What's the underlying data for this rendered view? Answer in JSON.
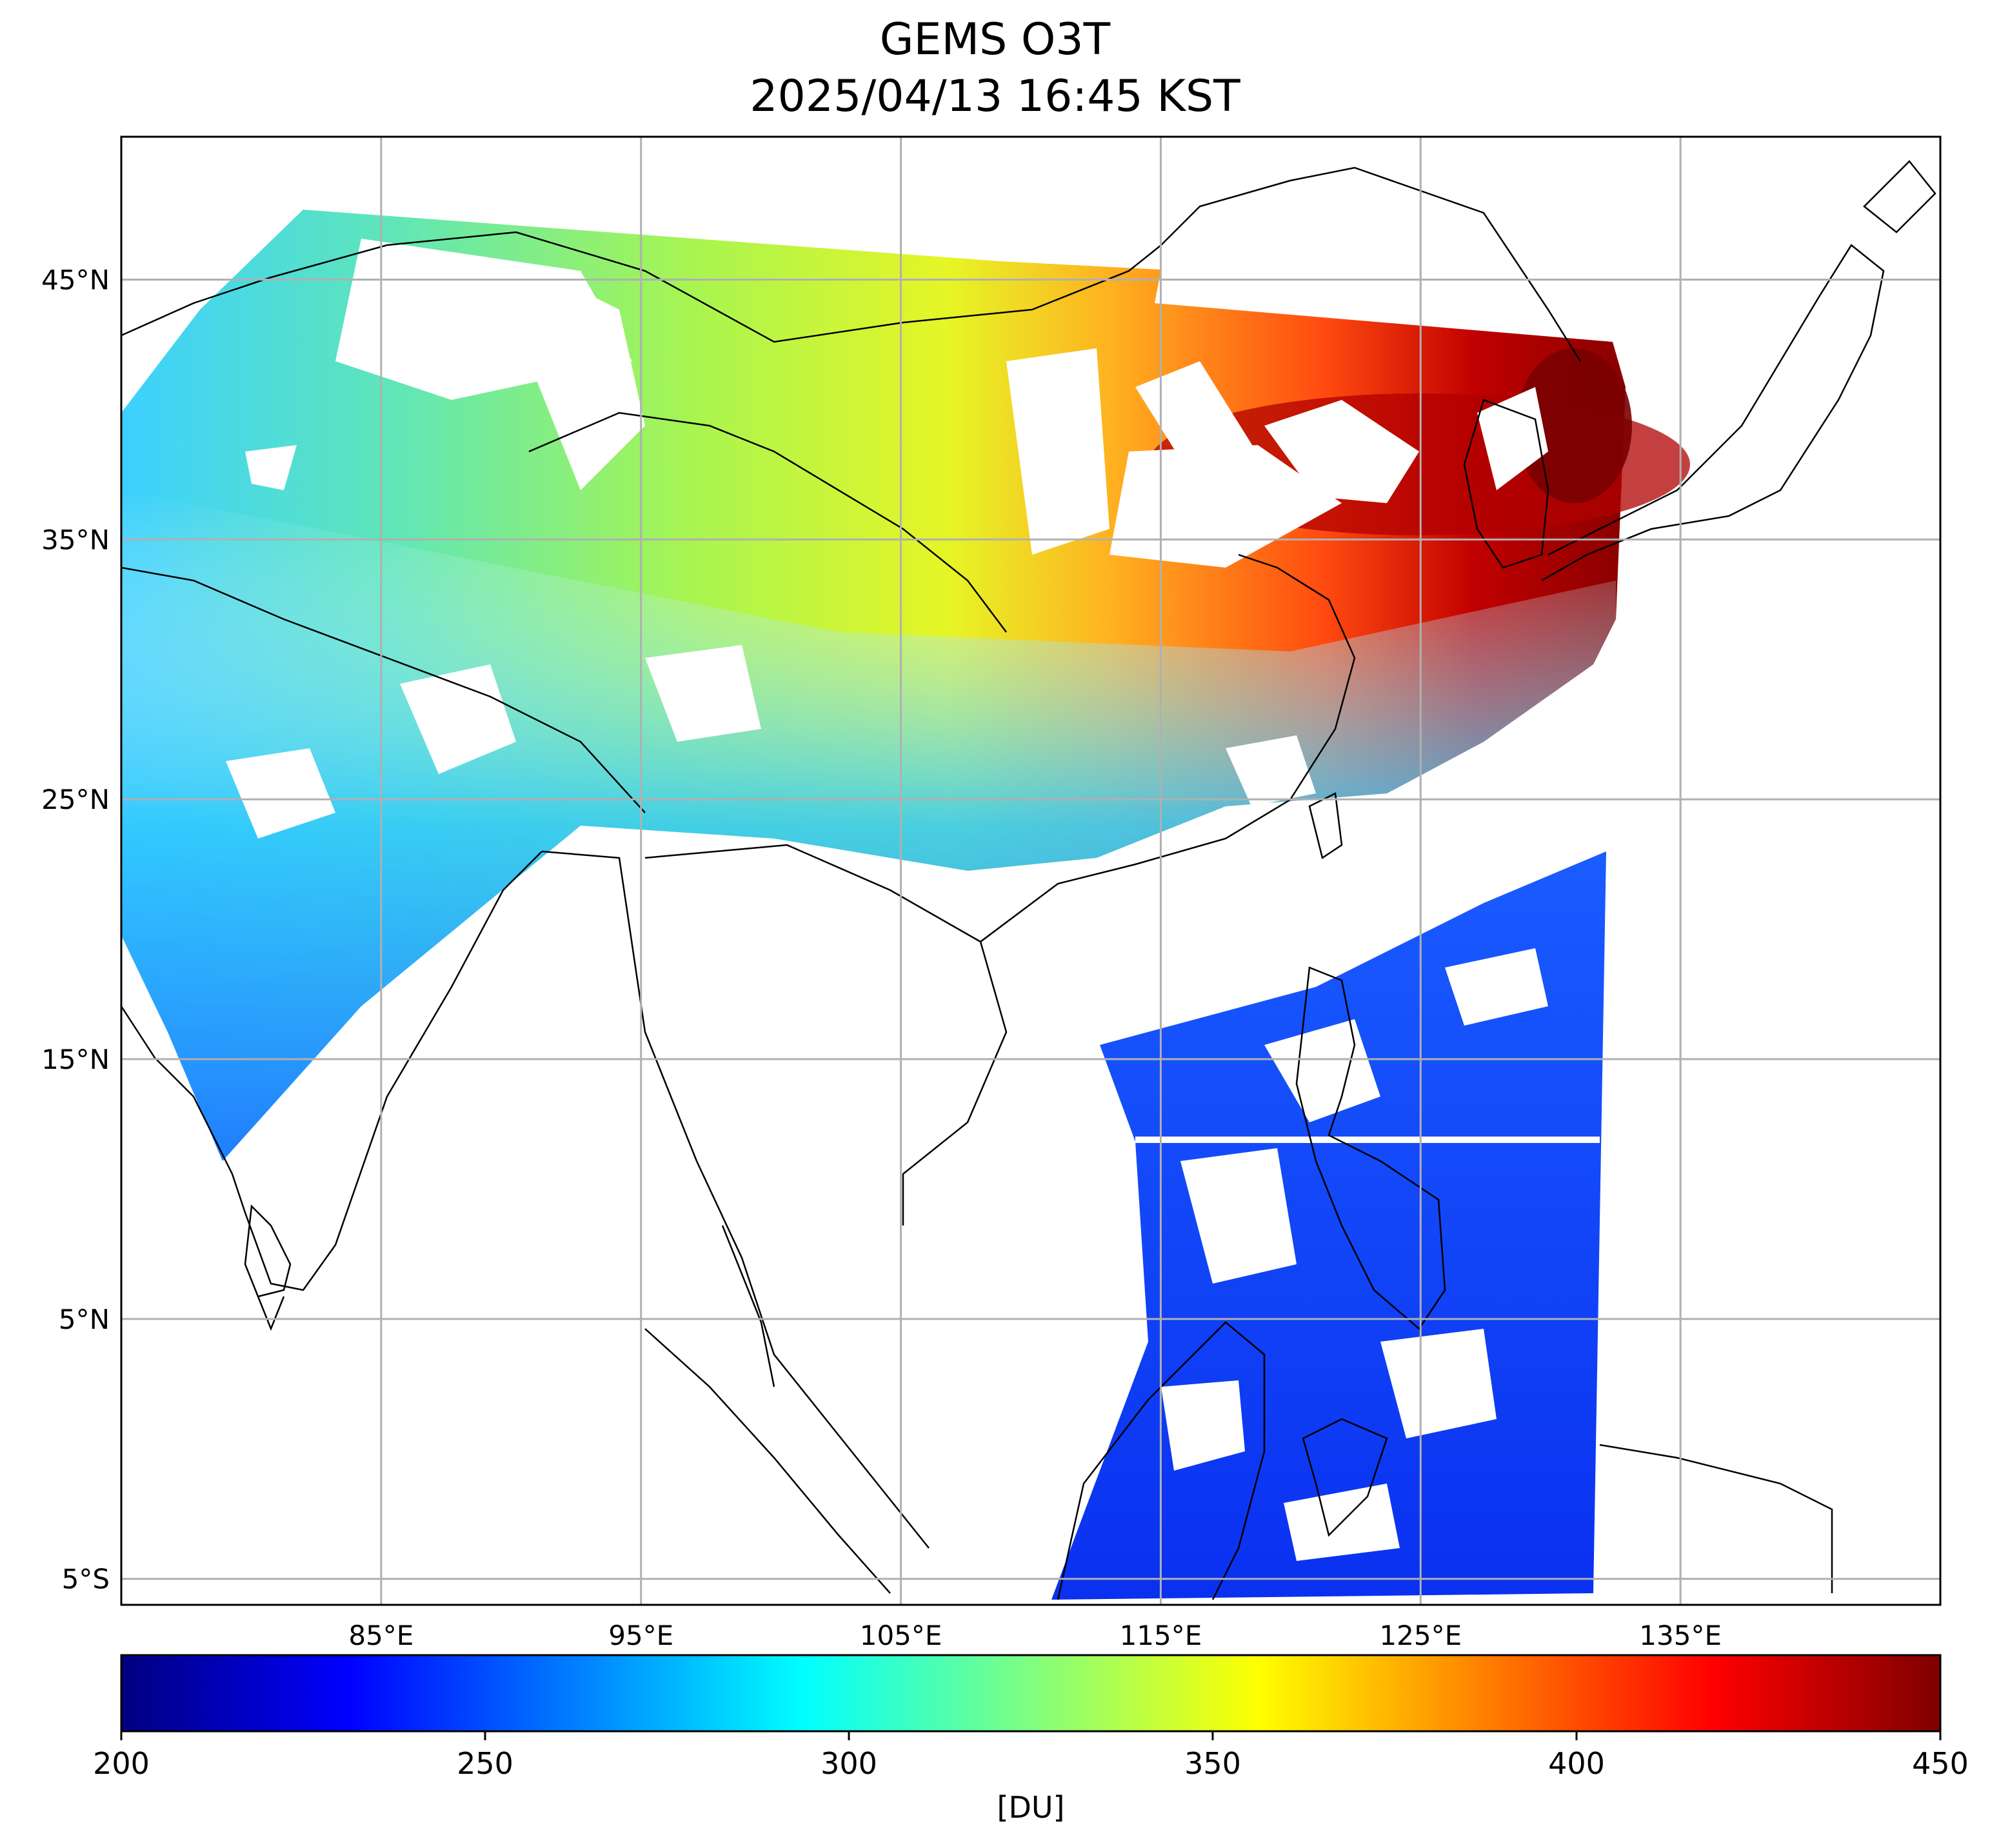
{
  "title": {
    "line1": "GEMS O3T",
    "line2": "2025/04/13 16:45 KST"
  },
  "map": {
    "lon_range": [
      75,
      145
    ],
    "lat_range": [
      -6,
      50.5
    ],
    "lon_ticks": [
      85,
      95,
      105,
      115,
      125,
      135
    ],
    "lon_labels": [
      "85°E",
      "95°E",
      "105°E",
      "115°E",
      "125°E",
      "135°E"
    ],
    "lat_ticks": [
      45,
      35,
      25,
      15,
      5,
      -5
    ],
    "lat_labels": [
      "45°N",
      "35°N",
      "25°N",
      "15°N",
      "5°N",
      "5°S"
    ],
    "grid": true
  },
  "colorbar": {
    "min": 200,
    "max": 450,
    "ticks": [
      200,
      250,
      300,
      350,
      400,
      450
    ],
    "tick_labels": [
      "200",
      "250",
      "300",
      "350",
      "400",
      "450"
    ],
    "unit": "[DU]",
    "colormap": "jet",
    "colors": [
      "#00007f",
      "#0000ff",
      "#007fff",
      "#00ffff",
      "#7fff7f",
      "#ffff00",
      "#ff7f00",
      "#ff0000",
      "#7f0000"
    ]
  },
  "colors": {
    "low_ozone": "#0b3cf0",
    "mid_ozone": "#7ff07a",
    "high_ozone": "#8a0000",
    "grid": "#b0b0b0",
    "coast": "#000000"
  }
}
